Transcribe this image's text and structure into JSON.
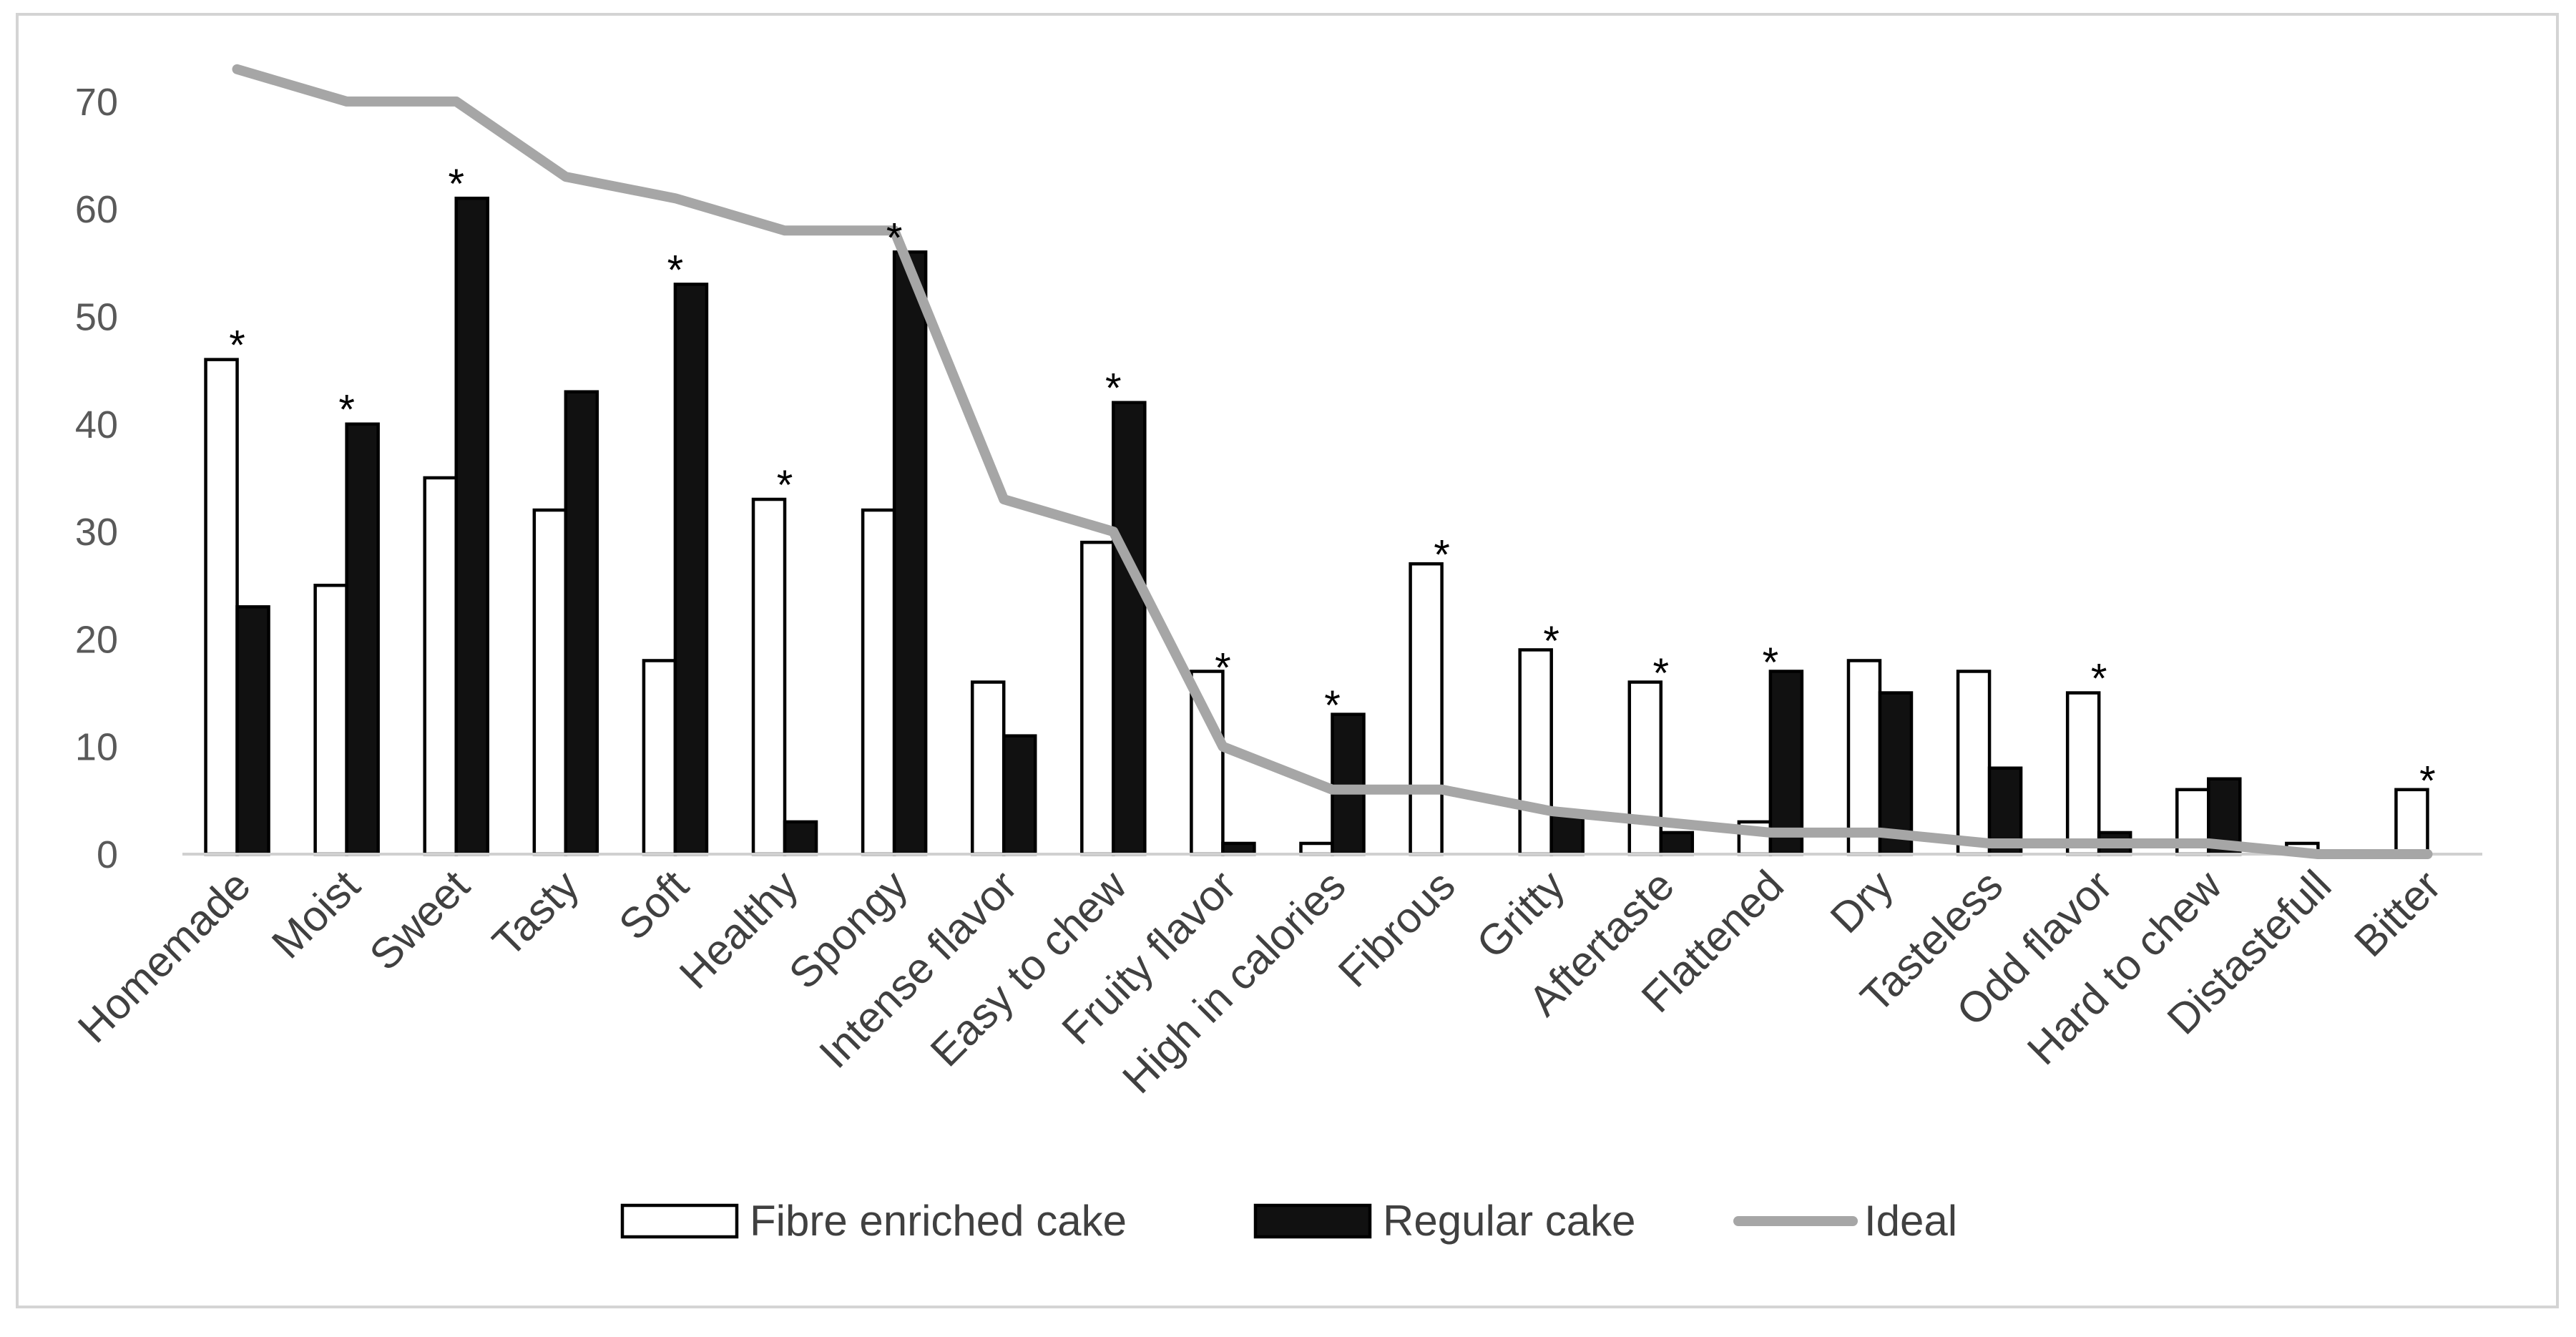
{
  "chart_data": {
    "type": "bar",
    "title": "",
    "xlabel": "",
    "ylabel": "",
    "ylim": [
      0,
      75
    ],
    "yticks": [
      0,
      10,
      20,
      30,
      40,
      50,
      60,
      70
    ],
    "grid": false,
    "legend_position": "bottom",
    "categories": [
      "Homemade",
      "Moist",
      "Sweet",
      "Tasty",
      "Soft",
      "Healthy",
      "Spongy",
      "Intense flavor",
      "Easy to chew",
      "Fruity flavor",
      "High in calories",
      "Fibrous",
      "Gritty",
      "Aftertaste",
      "Flattened",
      "Dry",
      "Tasteless",
      "Odd flavor",
      "Hard to chew",
      "Distastefull",
      "Bitter"
    ],
    "series": [
      {
        "name": "Fibre enriched cake",
        "type": "bar",
        "fill": "#ffffff",
        "stroke": "#000000",
        "values": [
          46,
          25,
          35,
          32,
          18,
          33,
          32,
          16,
          29,
          17,
          1,
          27,
          19,
          16,
          3,
          18,
          17,
          15,
          6,
          1,
          6
        ]
      },
      {
        "name": "Regular cake",
        "type": "bar",
        "fill": "#111111",
        "stroke": "#000000",
        "values": [
          23,
          40,
          61,
          43,
          53,
          3,
          56,
          11,
          42,
          1,
          13,
          0,
          4,
          2,
          17,
          15,
          8,
          2,
          7,
          0,
          0
        ]
      },
      {
        "name": "Ideal",
        "type": "line",
        "color": "#a6a6a6",
        "values": [
          73,
          70,
          70,
          63,
          61,
          58,
          58,
          33,
          30,
          10,
          6,
          6,
          4,
          3,
          2,
          2,
          1,
          1,
          1,
          0,
          0
        ]
      }
    ],
    "annotations": [
      {
        "category": "Homemade",
        "text": "*",
        "value": 48
      },
      {
        "category": "Moist",
        "text": "*",
        "value": 42
      },
      {
        "category": "Sweet",
        "text": "*",
        "value": 63
      },
      {
        "category": "Soft",
        "text": "*",
        "value": 55
      },
      {
        "category": "Healthy",
        "text": "*",
        "value": 35
      },
      {
        "category": "Spongy",
        "text": "*",
        "value": 58
      },
      {
        "category": "Easy to chew",
        "text": "*",
        "value": 44
      },
      {
        "category": "Fruity flavor",
        "text": "*",
        "value": 18
      },
      {
        "category": "High in calories",
        "text": "*",
        "value": 14.5
      },
      {
        "category": "Fibrous",
        "text": "*",
        "value": 28.5
      },
      {
        "category": "Gritty",
        "text": "*",
        "value": 20.5
      },
      {
        "category": "Aftertaste",
        "text": "*",
        "value": 17.5
      },
      {
        "category": "Flattened",
        "text": "*",
        "value": 18.5
      },
      {
        "category": "Odd flavor",
        "text": "*",
        "value": 17
      },
      {
        "category": "Bitter",
        "text": "*",
        "value": 7.5
      }
    ]
  }
}
